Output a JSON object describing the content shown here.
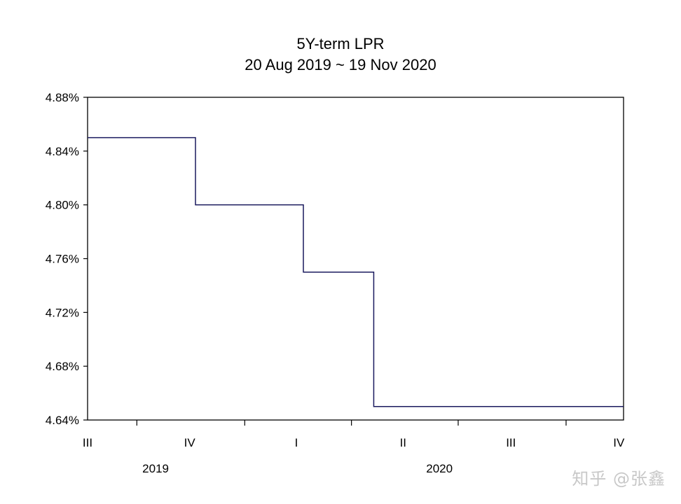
{
  "watermark": "知乎 @张鑫",
  "chart_data": {
    "type": "line",
    "title": "5Y-term LPR",
    "subtitle": "20 Aug 2019 ~ 19 Nov 2020",
    "xlabel": "",
    "ylabel": "",
    "step": true,
    "xlim": [
      "2019-08-20",
      "2020-11-19"
    ],
    "ylim": [
      4.64,
      4.88
    ],
    "yticks": [
      "4.64%",
      "4.68%",
      "4.72%",
      "4.76%",
      "4.80%",
      "4.84%",
      "4.88%"
    ],
    "quarter_labels": [
      {
        "label": "III",
        "date": "2019-08-20"
      },
      {
        "label": "IV",
        "date": "2019-11-15"
      },
      {
        "label": "I",
        "date": "2020-02-14"
      },
      {
        "label": "II",
        "date": "2020-05-15"
      },
      {
        "label": "III",
        "date": "2020-08-15"
      },
      {
        "label": "IV",
        "date": "2020-11-15"
      }
    ],
    "quarter_ticks": [
      "2019-10-01",
      "2020-01-01",
      "2020-04-01",
      "2020-07-01",
      "2020-10-01"
    ],
    "year_labels": [
      {
        "label": "2019",
        "date": "2019-10-17"
      },
      {
        "label": "2020",
        "date": "2020-06-15"
      }
    ],
    "x": [
      "2019-08-20",
      "2019-11-20",
      "2020-02-20",
      "2020-04-20",
      "2020-11-19"
    ],
    "values": [
      4.85,
      4.8,
      4.75,
      4.65,
      4.65
    ],
    "line_color": "#1a1a5e",
    "grid": false,
    "legend": "none"
  }
}
